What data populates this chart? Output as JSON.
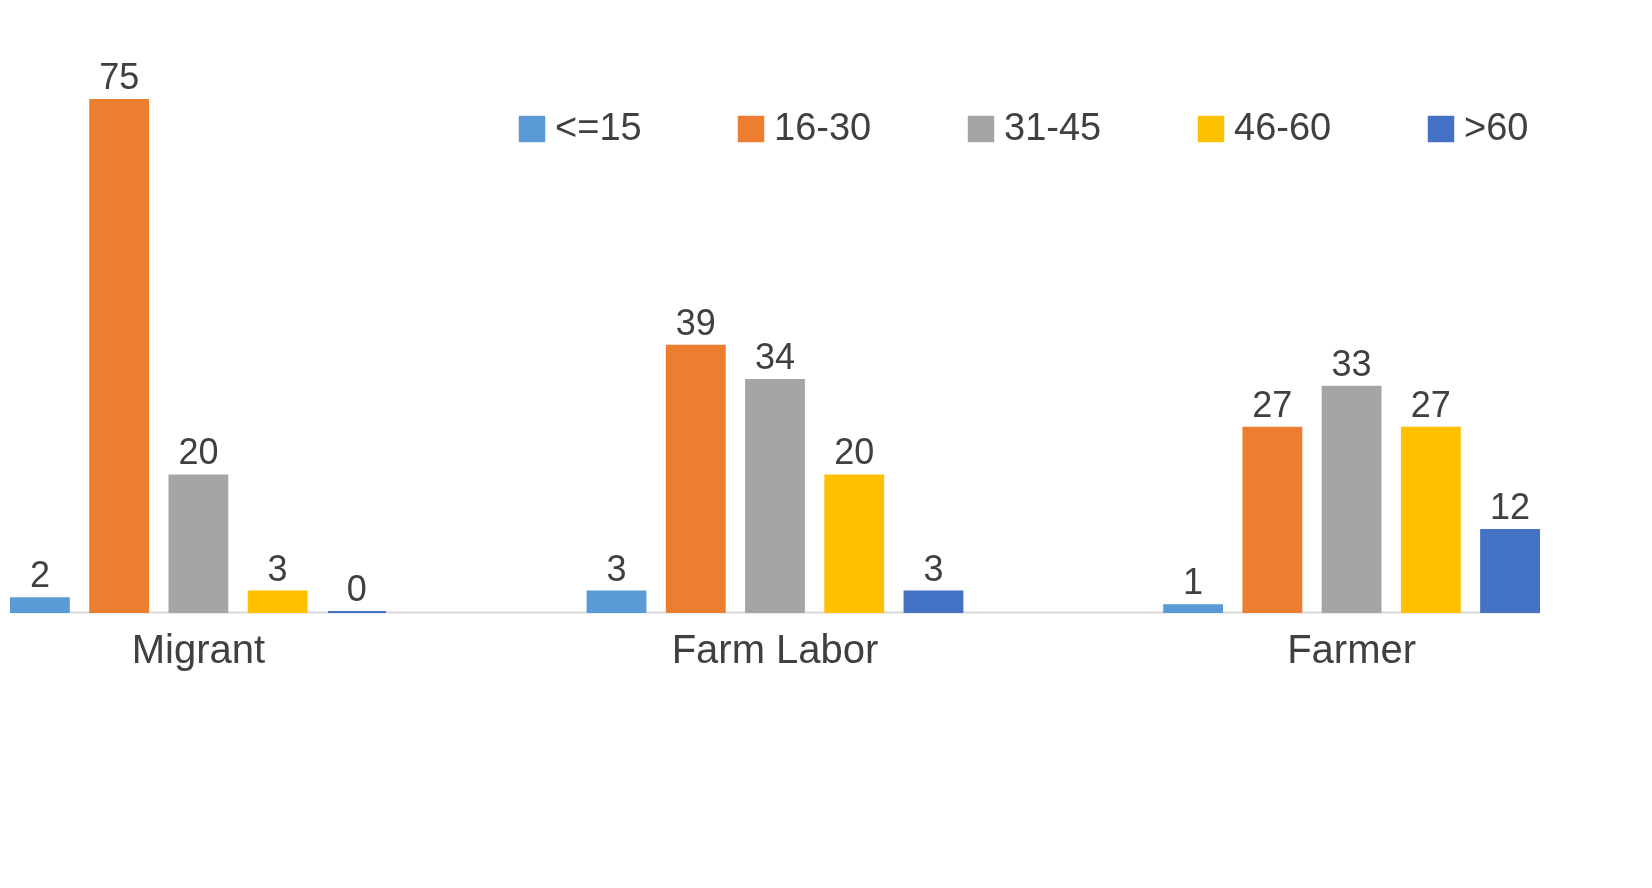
{
  "chart_data": {
    "type": "bar",
    "categories": [
      "Migrant",
      "Farm Labor",
      "Farmer"
    ],
    "series": [
      {
        "name": "<=15",
        "color": "#5b9bd5",
        "values": [
          2,
          3,
          1
        ]
      },
      {
        "name": "16-30",
        "color": "#ed7d31",
        "values": [
          75,
          39,
          27
        ]
      },
      {
        "name": "31-45",
        "color": "#a5a5a5",
        "values": [
          20,
          34,
          33
        ]
      },
      {
        "name": "46-60",
        "color": "#ffc000",
        "values": [
          3,
          20,
          27
        ]
      },
      {
        "name": ">60",
        "color": "#4472c4",
        "values": [
          0,
          3,
          12
        ]
      }
    ],
    "data_labels": true,
    "legend": "top right",
    "grid": false,
    "tick_labels": "x"
  }
}
